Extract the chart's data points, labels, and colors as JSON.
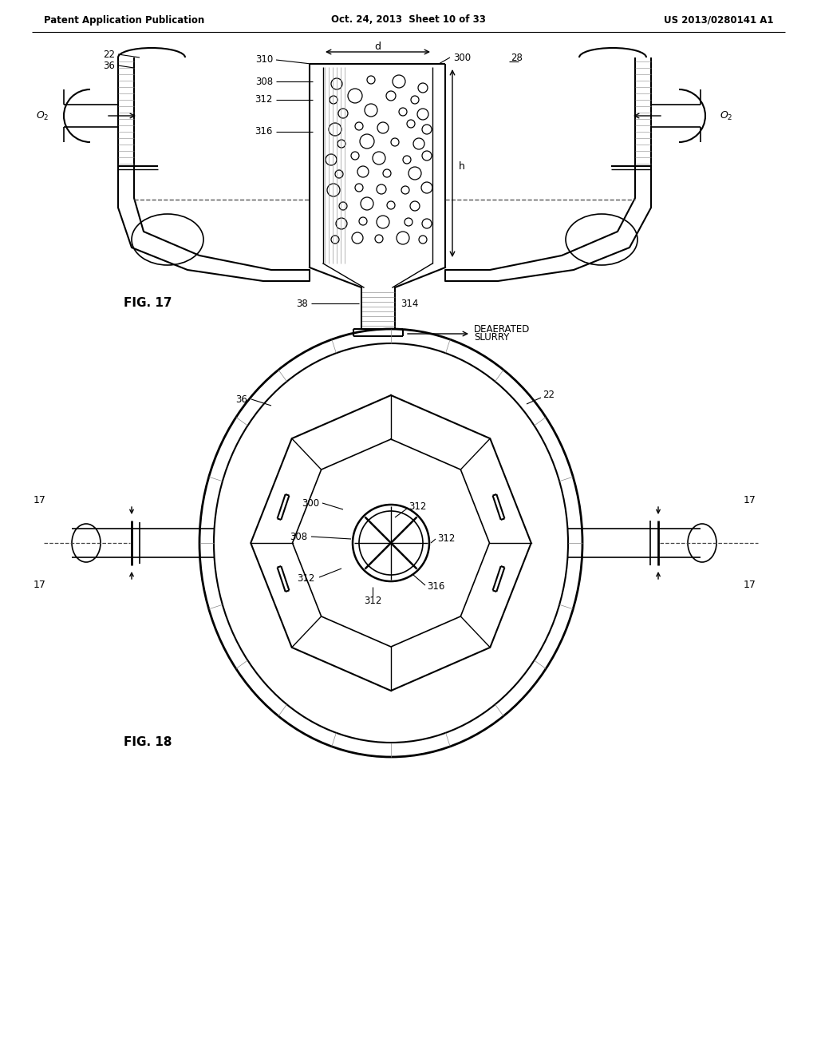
{
  "header_left": "Patent Application Publication",
  "header_mid": "Oct. 24, 2013  Sheet 10 of 33",
  "header_right": "US 2013/0280141 A1",
  "fig17_label": "FIG. 17",
  "fig18_label": "FIG. 18",
  "bg_color": "#ffffff",
  "line_color": "#000000"
}
